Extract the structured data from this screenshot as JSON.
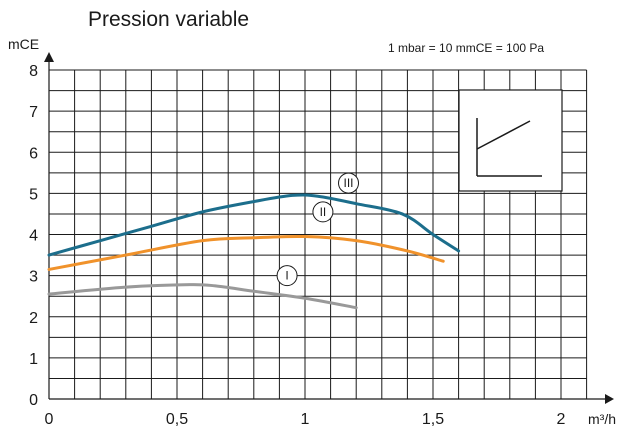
{
  "chart_data": {
    "type": "line",
    "title": "Pression variable",
    "note": "1 mbar = 10 mmCE = 100 Pa",
    "ylabel": "mCE",
    "xlabel": "m³/h",
    "xlim": [
      0,
      2.1
    ],
    "ylim": [
      0,
      8
    ],
    "x_ticks": [
      {
        "value": 0,
        "label": "0"
      },
      {
        "value": 0.5,
        "label": "0,5"
      },
      {
        "value": 1,
        "label": "1"
      },
      {
        "value": 1.5,
        "label": "1,5"
      },
      {
        "value": 2,
        "label": "2"
      }
    ],
    "y_ticks": [
      {
        "value": 0,
        "label": "0"
      },
      {
        "value": 1,
        "label": "1"
      },
      {
        "value": 2,
        "label": "2"
      },
      {
        "value": 3,
        "label": "3"
      },
      {
        "value": 4,
        "label": "4"
      },
      {
        "value": 5,
        "label": "5"
      },
      {
        "value": 6,
        "label": "6"
      },
      {
        "value": 7,
        "label": "7"
      },
      {
        "value": 8,
        "label": "8"
      }
    ],
    "grid": true,
    "series": [
      {
        "name": "III",
        "color": "#1c6e8c",
        "x": [
          0,
          0.2,
          0.4,
          0.6,
          0.8,
          0.95,
          1.05,
          1.2,
          1.38,
          1.5,
          1.6
        ],
        "y": [
          3.5,
          3.85,
          4.2,
          4.55,
          4.8,
          4.95,
          4.93,
          4.75,
          4.5,
          4.0,
          3.6
        ],
        "label_at": [
          1.17,
          5.25
        ]
      },
      {
        "name": "II",
        "color": "#f0922b",
        "x": [
          0,
          0.3,
          0.6,
          0.8,
          1.0,
          1.2,
          1.4,
          1.54
        ],
        "y": [
          3.15,
          3.5,
          3.85,
          3.92,
          3.95,
          3.85,
          3.6,
          3.35
        ],
        "label_at": [
          1.07,
          4.55
        ]
      },
      {
        "name": "I",
        "color": "#999999",
        "x": [
          0,
          0.3,
          0.55,
          0.65,
          0.8,
          1.0,
          1.2
        ],
        "y": [
          2.55,
          2.72,
          2.78,
          2.75,
          2.62,
          2.45,
          2.22
        ],
        "label_at": [
          0.93,
          3.0
        ]
      }
    ]
  }
}
